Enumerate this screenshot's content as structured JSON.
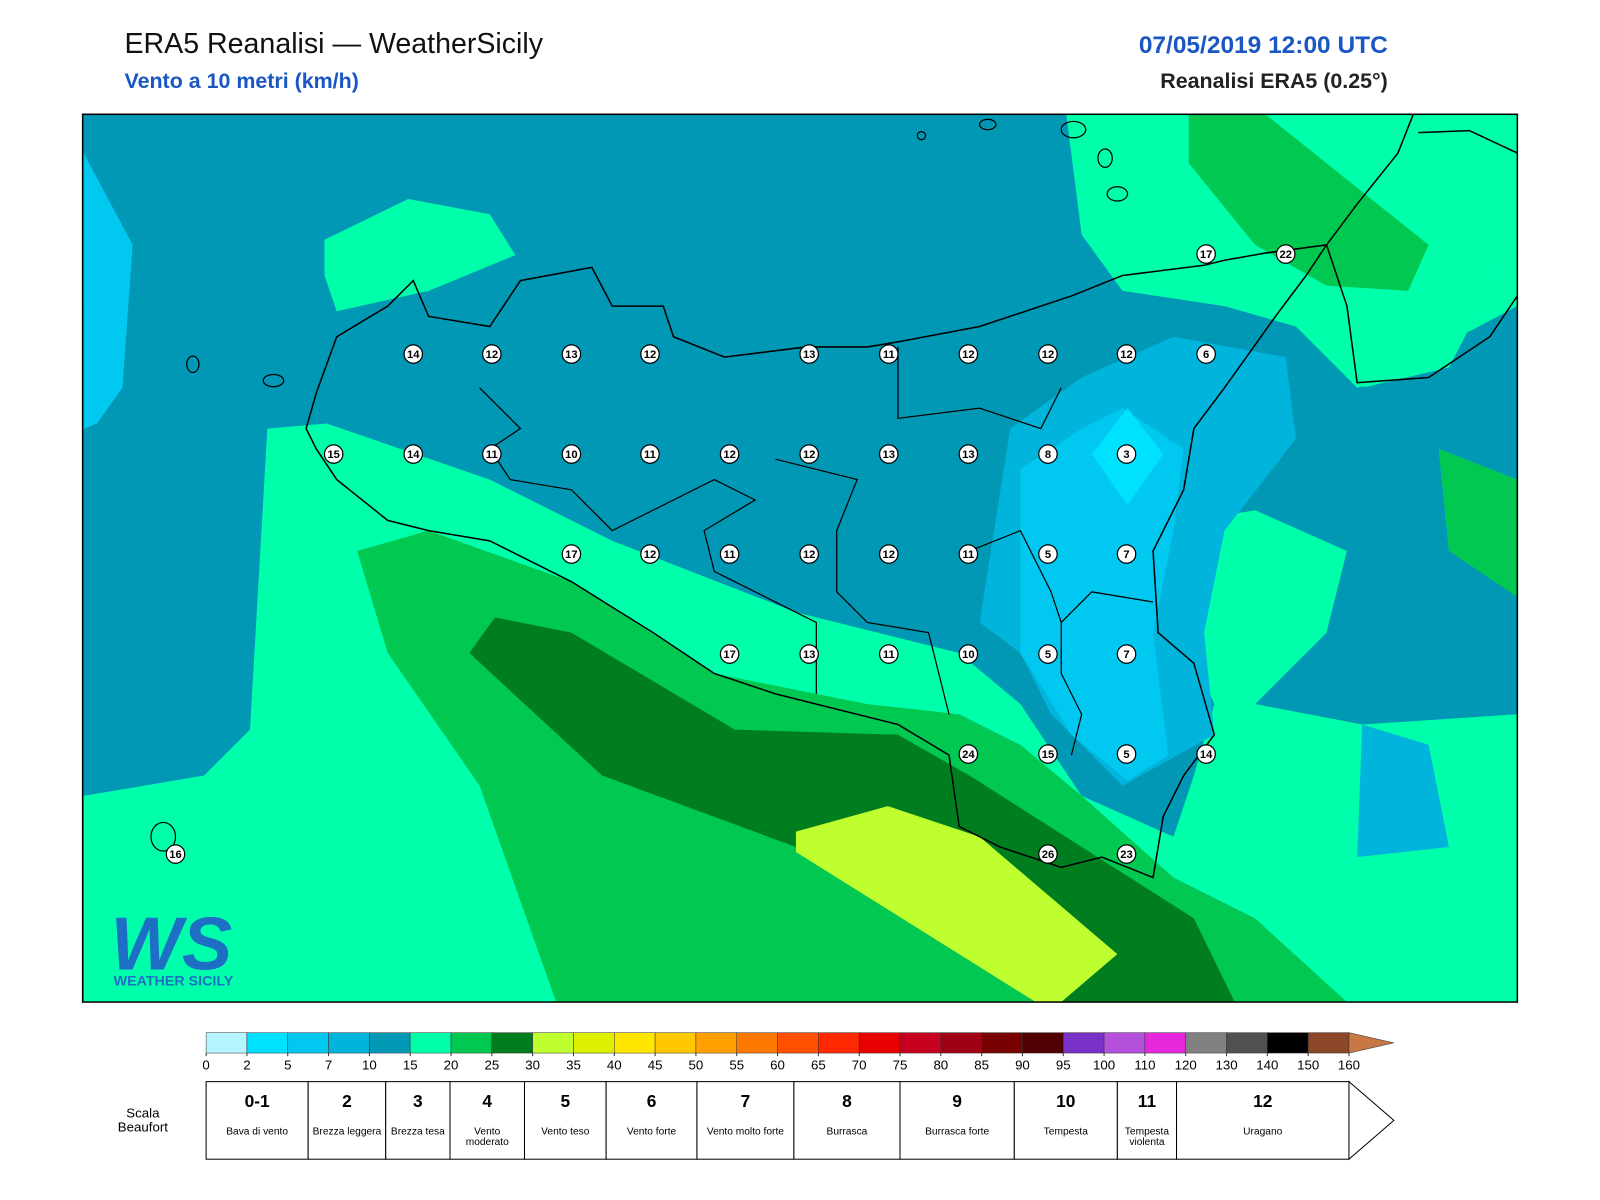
{
  "header": {
    "title": "ERA5 Reanalisi — WeatherSicily",
    "subtitle": "Vento a 10 metri (km/h)",
    "datetime": "07/05/2019 12:00 UTC",
    "source": "Reanalisi ERA5 (0.25°)"
  },
  "stations": [
    14,
    12,
    13,
    12,
    13,
    11,
    12,
    12,
    12,
    6,
    15,
    14,
    11,
    10,
    11,
    12,
    12,
    13,
    13,
    8,
    3,
    17,
    12,
    11,
    12,
    12,
    11,
    5,
    7,
    17,
    13,
    11,
    10,
    5,
    7,
    24,
    15,
    5,
    14,
    26,
    23,
    17,
    22,
    16
  ],
  "logo": {
    "mark": "WS",
    "text": "WEATHER SICILY"
  },
  "colorbar": {
    "ticks": [
      0,
      2,
      5,
      7,
      10,
      15,
      20,
      25,
      30,
      35,
      40,
      45,
      50,
      55,
      60,
      65,
      70,
      75,
      80,
      85,
      90,
      95,
      100,
      110,
      120,
      130,
      140,
      150,
      160
    ],
    "colors": [
      "#b4f5ff",
      "#00e0ff",
      "#00c8f0",
      "#00b4dc",
      "#0098b4",
      "#00ffaa",
      "#00c850",
      "#007d1e",
      "#bfff30",
      "#dcf000",
      "#ffe600",
      "#ffc800",
      "#ffa000",
      "#ff7800",
      "#ff5000",
      "#ff2800",
      "#e60000",
      "#c80020",
      "#a00014",
      "#780000",
      "#500000",
      "#7832c8",
      "#b450dc",
      "#e628dc",
      "#808080",
      "#505050",
      "#000000",
      "#8c4628",
      "#c87846"
    ]
  },
  "beaufort": {
    "title": "Scala Beaufort",
    "levels": [
      {
        "force": "0-1",
        "label": "Bava di vento"
      },
      {
        "force": "2",
        "label": "Brezza leggera"
      },
      {
        "force": "3",
        "label": "Brezza tesa"
      },
      {
        "force": "4",
        "label": "Vento moderato"
      },
      {
        "force": "5",
        "label": "Vento teso"
      },
      {
        "force": "6",
        "label": "Vento forte"
      },
      {
        "force": "7",
        "label": "Vento molto forte"
      },
      {
        "force": "8",
        "label": "Burrasca"
      },
      {
        "force": "9",
        "label": "Burrasca forte"
      },
      {
        "force": "10",
        "label": "Tempesta"
      },
      {
        "force": "11",
        "label": "Tempesta violenta"
      },
      {
        "force": "12",
        "label": "Uragano"
      }
    ]
  }
}
